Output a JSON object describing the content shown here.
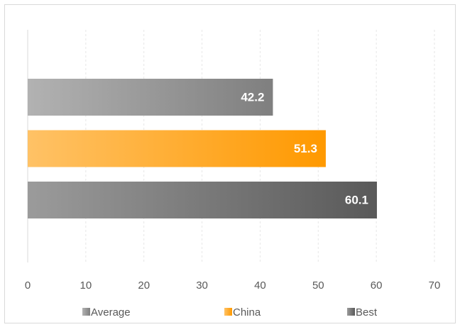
{
  "chart_data": {
    "type": "bar",
    "orientation": "horizontal",
    "series": [
      {
        "name": "Average",
        "color": "#7f7f7f",
        "values": [
          42.2
        ]
      },
      {
        "name": "China",
        "color": "#ff9900",
        "values": [
          51.3
        ]
      },
      {
        "name": "Best",
        "color": "#595959",
        "values": [
          60.1
        ]
      }
    ],
    "xlim": [
      0,
      70
    ],
    "xticks": [
      0,
      10,
      20,
      30,
      40,
      50,
      60,
      70
    ],
    "grid": true,
    "legend": "bottom"
  }
}
